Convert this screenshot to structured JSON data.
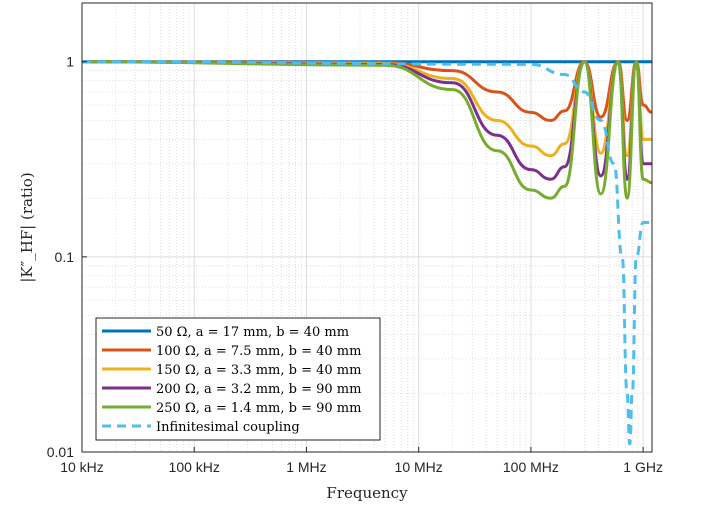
{
  "chart_data": {
    "type": "line",
    "xlabel": "Frequency",
    "ylabel": "|K″_HF| (ratio)",
    "xscale": "log",
    "yscale": "log",
    "xlim": [
      10000,
      1200000000
    ],
    "ylim": [
      0.01,
      2
    ],
    "grid": true,
    "legend_position": "bottom-left",
    "x_ticks": [
      {
        "value": 10000,
        "label": "10 kHz"
      },
      {
        "value": 100000,
        "label": "100 kHz"
      },
      {
        "value": 1000000,
        "label": "1 MHz"
      },
      {
        "value": 10000000,
        "label": "10 MHz"
      },
      {
        "value": 100000000,
        "label": "100 MHz"
      },
      {
        "value": 1000000000,
        "label": "1 GHz"
      }
    ],
    "y_ticks": [
      {
        "value": 0.01,
        "label": "0.01"
      },
      {
        "value": 0.1,
        "label": "0.1"
      },
      {
        "value": 1,
        "label": "1"
      }
    ],
    "series": [
      {
        "name": "50 Ω,  a = 17 mm,  b = 40 mm",
        "color": "#0072BD",
        "style": "solid",
        "points": [
          [
            10000,
            1
          ],
          [
            1200000000,
            1
          ]
        ]
      },
      {
        "name": "100 Ω, a = 7.5 mm, b = 40 mm",
        "color": "#D95319",
        "style": "solid",
        "points": [
          [
            10000,
            1
          ],
          [
            5000000,
            0.99
          ],
          [
            20000000,
            0.9
          ],
          [
            50000000,
            0.7
          ],
          [
            100000000,
            0.55
          ],
          [
            150000000,
            0.5
          ],
          [
            200000000,
            0.56
          ],
          [
            300000000,
            1
          ],
          [
            420000000,
            0.52
          ],
          [
            600000000,
            1
          ],
          [
            720000000,
            0.5
          ],
          [
            870000000,
            1
          ],
          [
            1000000000,
            0.6
          ],
          [
            1200000000,
            0.55
          ]
        ]
      },
      {
        "name": "150 Ω, a = 3.3 mm, b = 40 mm",
        "color": "#EDB120",
        "style": "solid",
        "points": [
          [
            10000,
            1
          ],
          [
            5000000,
            0.98
          ],
          [
            20000000,
            0.82
          ],
          [
            50000000,
            0.5
          ],
          [
            100000000,
            0.37
          ],
          [
            150000000,
            0.33
          ],
          [
            200000000,
            0.38
          ],
          [
            300000000,
            1
          ],
          [
            420000000,
            0.34
          ],
          [
            600000000,
            1
          ],
          [
            720000000,
            0.33
          ],
          [
            870000000,
            1
          ],
          [
            1000000000,
            0.4
          ],
          [
            1200000000,
            0.4
          ]
        ]
      },
      {
        "name": "200 Ω, a = 3.2 mm, b = 90 mm",
        "color": "#7E2F8E",
        "style": "solid",
        "points": [
          [
            10000,
            1
          ],
          [
            5000000,
            0.97
          ],
          [
            20000000,
            0.78
          ],
          [
            50000000,
            0.42
          ],
          [
            100000000,
            0.28
          ],
          [
            150000000,
            0.25
          ],
          [
            200000000,
            0.29
          ],
          [
            300000000,
            1
          ],
          [
            420000000,
            0.26
          ],
          [
            600000000,
            1
          ],
          [
            720000000,
            0.25
          ],
          [
            870000000,
            1
          ],
          [
            1000000000,
            0.3
          ],
          [
            1200000000,
            0.3
          ]
        ]
      },
      {
        "name": "250 Ω, a = 1.4 mm, b = 90 mm",
        "color": "#77AC30",
        "style": "solid",
        "points": [
          [
            10000,
            1
          ],
          [
            5000000,
            0.96
          ],
          [
            20000000,
            0.72
          ],
          [
            50000000,
            0.35
          ],
          [
            100000000,
            0.22
          ],
          [
            150000000,
            0.2
          ],
          [
            200000000,
            0.23
          ],
          [
            300000000,
            1
          ],
          [
            420000000,
            0.21
          ],
          [
            600000000,
            1
          ],
          [
            720000000,
            0.2
          ],
          [
            870000000,
            1
          ],
          [
            1000000000,
            0.25
          ],
          [
            1200000000,
            0.24
          ]
        ]
      },
      {
        "name": "Infinitesimal coupling",
        "color": "#4DBEEE",
        "style": "dashed",
        "points": [
          [
            10000,
            1
          ],
          [
            100000000,
            0.97
          ],
          [
            200000000,
            0.86
          ],
          [
            300000000,
            0.7
          ],
          [
            420000000,
            0.5
          ],
          [
            550000000,
            0.3
          ],
          [
            650000000,
            0.1
          ],
          [
            720000000,
            0.02
          ],
          [
            760000000,
            0.011
          ],
          [
            800000000,
            0.02
          ],
          [
            870000000,
            0.1
          ],
          [
            1000000000,
            0.15
          ],
          [
            1200000000,
            0.15
          ]
        ]
      }
    ]
  }
}
